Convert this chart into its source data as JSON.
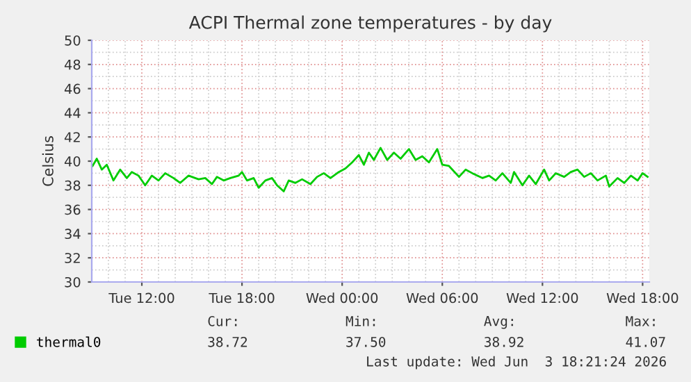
{
  "chart_data": {
    "type": "line",
    "title": "ACPI Thermal zone temperatures - by day",
    "ylabel": "Celsius",
    "x": [
      "2026-06-02T09:03",
      "2026-06-02T09:18",
      "2026-06-02T09:36",
      "2026-06-02T09:54",
      "2026-06-02T10:18",
      "2026-06-02T10:42",
      "2026-06-02T11:06",
      "2026-06-02T11:24",
      "2026-06-02T11:48",
      "2026-06-02T12:12",
      "2026-06-02T12:36",
      "2026-06-02T13:00",
      "2026-06-02T13:24",
      "2026-06-02T13:54",
      "2026-06-02T14:18",
      "2026-06-02T14:48",
      "2026-06-02T15:24",
      "2026-06-02T15:48",
      "2026-06-02T16:12",
      "2026-06-02T16:30",
      "2026-06-02T16:54",
      "2026-06-02T17:18",
      "2026-06-02T17:48",
      "2026-06-02T18:00",
      "2026-06-02T18:18",
      "2026-06-02T18:42",
      "2026-06-02T19:00",
      "2026-06-02T19:24",
      "2026-06-02T19:48",
      "2026-06-02T20:06",
      "2026-06-02T20:30",
      "2026-06-02T20:48",
      "2026-06-02T21:12",
      "2026-06-02T21:36",
      "2026-06-02T22:06",
      "2026-06-02T22:30",
      "2026-06-02T22:54",
      "2026-06-02T23:18",
      "2026-06-02T23:48",
      "2026-06-03T00:12",
      "2026-06-03T00:36",
      "2026-06-03T01:00",
      "2026-06-03T01:18",
      "2026-06-03T01:36",
      "2026-06-03T01:54",
      "2026-06-03T02:18",
      "2026-06-03T02:42",
      "2026-06-03T03:06",
      "2026-06-03T03:30",
      "2026-06-03T04:00",
      "2026-06-03T04:24",
      "2026-06-03T04:48",
      "2026-06-03T05:12",
      "2026-06-03T05:42",
      "2026-06-03T06:00",
      "2026-06-03T06:24",
      "2026-06-03T07:00",
      "2026-06-03T07:24",
      "2026-06-03T07:48",
      "2026-06-03T08:24",
      "2026-06-03T08:48",
      "2026-06-03T09:12",
      "2026-06-03T09:36",
      "2026-06-03T10:06",
      "2026-06-03T10:18",
      "2026-06-03T10:48",
      "2026-06-03T11:12",
      "2026-06-03T11:36",
      "2026-06-03T12:06",
      "2026-06-03T12:24",
      "2026-06-03T12:48",
      "2026-06-03T13:18",
      "2026-06-03T13:42",
      "2026-06-03T14:06",
      "2026-06-03T14:30",
      "2026-06-03T14:54",
      "2026-06-03T15:18",
      "2026-06-03T15:48",
      "2026-06-03T16:00",
      "2026-06-03T16:30",
      "2026-06-03T16:54",
      "2026-06-03T17:18",
      "2026-06-03T17:42",
      "2026-06-03T18:00",
      "2026-06-03T18:18"
    ],
    "series": [
      {
        "name": "thermal0",
        "color": "#00cc00",
        "values": [
          39.6,
          40.2,
          39.3,
          39.7,
          38.4,
          39.3,
          38.6,
          39.1,
          38.8,
          38.0,
          38.8,
          38.4,
          39.0,
          38.6,
          38.2,
          38.8,
          38.5,
          38.6,
          38.1,
          38.7,
          38.4,
          38.6,
          38.8,
          39.1,
          38.4,
          38.6,
          37.8,
          38.4,
          38.6,
          38.0,
          37.5,
          38.4,
          38.2,
          38.5,
          38.1,
          38.7,
          39.0,
          38.6,
          39.1,
          39.4,
          39.9,
          40.5,
          39.7,
          40.7,
          40.1,
          41.1,
          40.1,
          40.7,
          40.2,
          41.0,
          40.1,
          40.4,
          39.9,
          41.0,
          39.7,
          39.6,
          38.7,
          39.3,
          39.0,
          38.6,
          38.8,
          38.4,
          39.0,
          38.2,
          39.1,
          38.0,
          38.8,
          38.1,
          39.3,
          38.4,
          39.0,
          38.7,
          39.1,
          39.3,
          38.7,
          39.0,
          38.4,
          38.8,
          37.9,
          38.6,
          38.2,
          38.8,
          38.4,
          39.0,
          38.7
        ]
      }
    ],
    "xlim": [
      "2026-06-02T09:00",
      "2026-06-03T18:24"
    ],
    "xticks": [
      {
        "value": "2026-06-02T12:00",
        "label": "Tue 12:00"
      },
      {
        "value": "2026-06-02T18:00",
        "label": "Tue 18:00"
      },
      {
        "value": "2026-06-03T00:00",
        "label": "Wed 00:00"
      },
      {
        "value": "2026-06-03T06:00",
        "label": "Wed 06:00"
      },
      {
        "value": "2026-06-03T12:00",
        "label": "Wed 12:00"
      },
      {
        "value": "2026-06-03T18:00",
        "label": "Wed 18:00"
      }
    ],
    "ylim": [
      30,
      50
    ],
    "yticks": [
      30,
      32,
      34,
      36,
      38,
      40,
      42,
      44,
      46,
      48,
      50
    ],
    "grid": true,
    "legend": "bottom left",
    "marker": "none",
    "line_style": "solid",
    "annotations": [
      "Cur:",
      "Min:",
      "Avg:",
      "Max:",
      "38.72",
      "37.50",
      "38.92",
      "41.07",
      "Last update: Wed Jun  3 18:21:24 2026"
    ]
  }
}
